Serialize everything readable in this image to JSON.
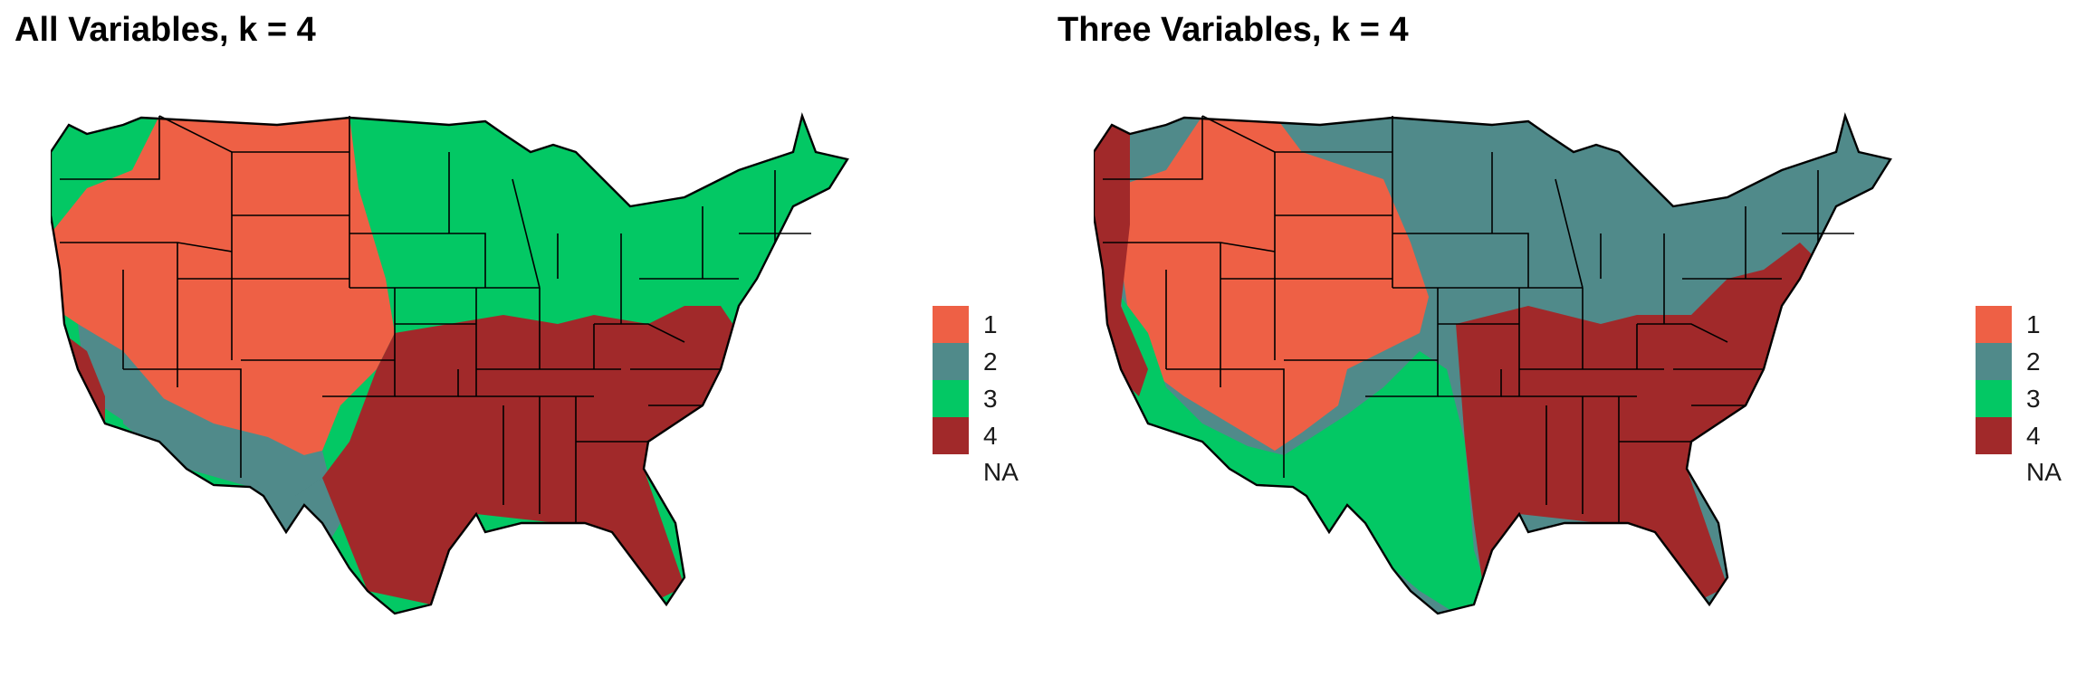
{
  "palette": {
    "1": "#EE6045",
    "2": "#508A8A",
    "3": "#03C864",
    "4": "#A1292A"
  },
  "panels": [
    {
      "title": "All Variables, k = 4",
      "legend": {
        "items": [
          {
            "label": "1",
            "cluster": "1"
          },
          {
            "label": "2",
            "cluster": "2"
          },
          {
            "label": "3",
            "cluster": "3"
          },
          {
            "label": "4",
            "cluster": "4"
          }
        ],
        "na_label": "NA"
      }
    },
    {
      "title": "Three Variables, k = 4",
      "legend": {
        "items": [
          {
            "label": "1",
            "cluster": "1"
          },
          {
            "label": "2",
            "cluster": "2"
          },
          {
            "label": "3",
            "cluster": "3"
          },
          {
            "label": "4",
            "cluster": "4"
          }
        ],
        "na_label": "NA"
      }
    }
  ]
}
